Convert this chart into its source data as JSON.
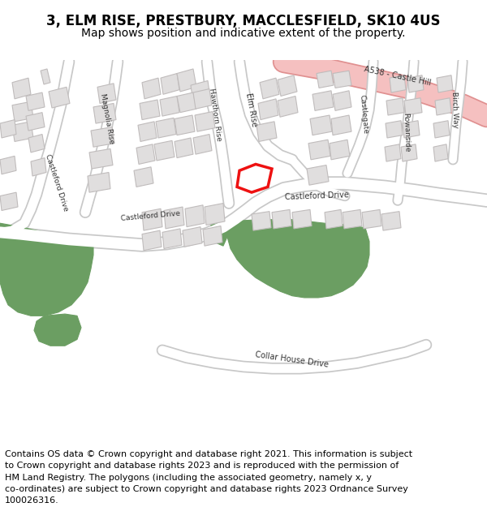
{
  "title_line1": "3, ELM RISE, PRESTBURY, MACCLESFIELD, SK10 4US",
  "title_line2": "Map shows position and indicative extent of the property.",
  "copyright_lines": [
    "Contains OS data © Crown copyright and database right 2021. This information is subject",
    "to Crown copyright and database rights 2023 and is reproduced with the permission of",
    "HM Land Registry. The polygons (including the associated geometry, namely x, y",
    "co-ordinates) are subject to Crown copyright and database rights 2023 Ordnance Survey",
    "100026316."
  ],
  "map_bg": "#ffffff",
  "road_color": "#ffffff",
  "road_outline_color": "#c8c8c8",
  "building_color": "#e0dede",
  "building_outline": "#c0bcbc",
  "green_color": "#6b9e62",
  "pink_color": "#f5c0c0",
  "pink_outline": "#e09090",
  "red_color": "#ee1111",
  "text_color": "#333333",
  "title_fontsize": 12,
  "subtitle_fontsize": 10,
  "copyright_fontsize": 8
}
